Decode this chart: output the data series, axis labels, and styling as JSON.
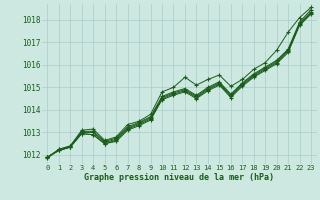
{
  "background_color": "#cce8e0",
  "grid_color": "#aacccc",
  "line_color": "#1a5c1a",
  "xlabel": "Graphe pression niveau de la mer (hPa)",
  "xlabel_color": "#1a5c1a",
  "ylabel_ticks": [
    1012,
    1013,
    1014,
    1015,
    1016,
    1017,
    1018
  ],
  "xlim": [
    -0.5,
    23.5
  ],
  "ylim": [
    1011.6,
    1018.7
  ],
  "series": [
    [
      1011.9,
      1012.2,
      1012.35,
      1012.95,
      1012.9,
      1012.5,
      1012.6,
      1013.1,
      1013.3,
      1013.55,
      1014.45,
      1014.65,
      1014.8,
      1014.5,
      1014.85,
      1015.1,
      1014.55,
      1015.05,
      1015.45,
      1015.75,
      1016.05,
      1016.55,
      1017.75,
      1018.25
    ],
    [
      1011.9,
      1012.2,
      1012.35,
      1012.95,
      1012.9,
      1012.5,
      1012.65,
      1013.15,
      1013.35,
      1013.6,
      1014.5,
      1014.7,
      1014.85,
      1014.55,
      1014.9,
      1015.15,
      1014.6,
      1015.1,
      1015.5,
      1015.8,
      1016.1,
      1016.6,
      1017.8,
      1018.3
    ],
    [
      1011.9,
      1012.2,
      1012.35,
      1013.0,
      1013.0,
      1012.55,
      1012.7,
      1013.2,
      1013.4,
      1013.65,
      1014.55,
      1014.75,
      1014.9,
      1014.6,
      1014.95,
      1015.2,
      1014.65,
      1015.15,
      1015.55,
      1015.85,
      1016.15,
      1016.65,
      1017.85,
      1018.35
    ],
    [
      1011.9,
      1012.25,
      1012.4,
      1013.05,
      1013.05,
      1012.6,
      1012.75,
      1013.25,
      1013.45,
      1013.7,
      1014.6,
      1014.8,
      1014.95,
      1014.65,
      1015.0,
      1015.25,
      1014.7,
      1015.2,
      1015.6,
      1015.9,
      1016.2,
      1016.7,
      1017.9,
      1018.45
    ],
    [
      1011.85,
      1012.25,
      1012.4,
      1013.1,
      1013.15,
      1012.65,
      1012.8,
      1013.35,
      1013.5,
      1013.8,
      1014.8,
      1015.0,
      1015.45,
      1015.1,
      1015.35,
      1015.55,
      1015.05,
      1015.35,
      1015.8,
      1016.1,
      1016.65,
      1017.45,
      1018.1,
      1018.55
    ]
  ]
}
